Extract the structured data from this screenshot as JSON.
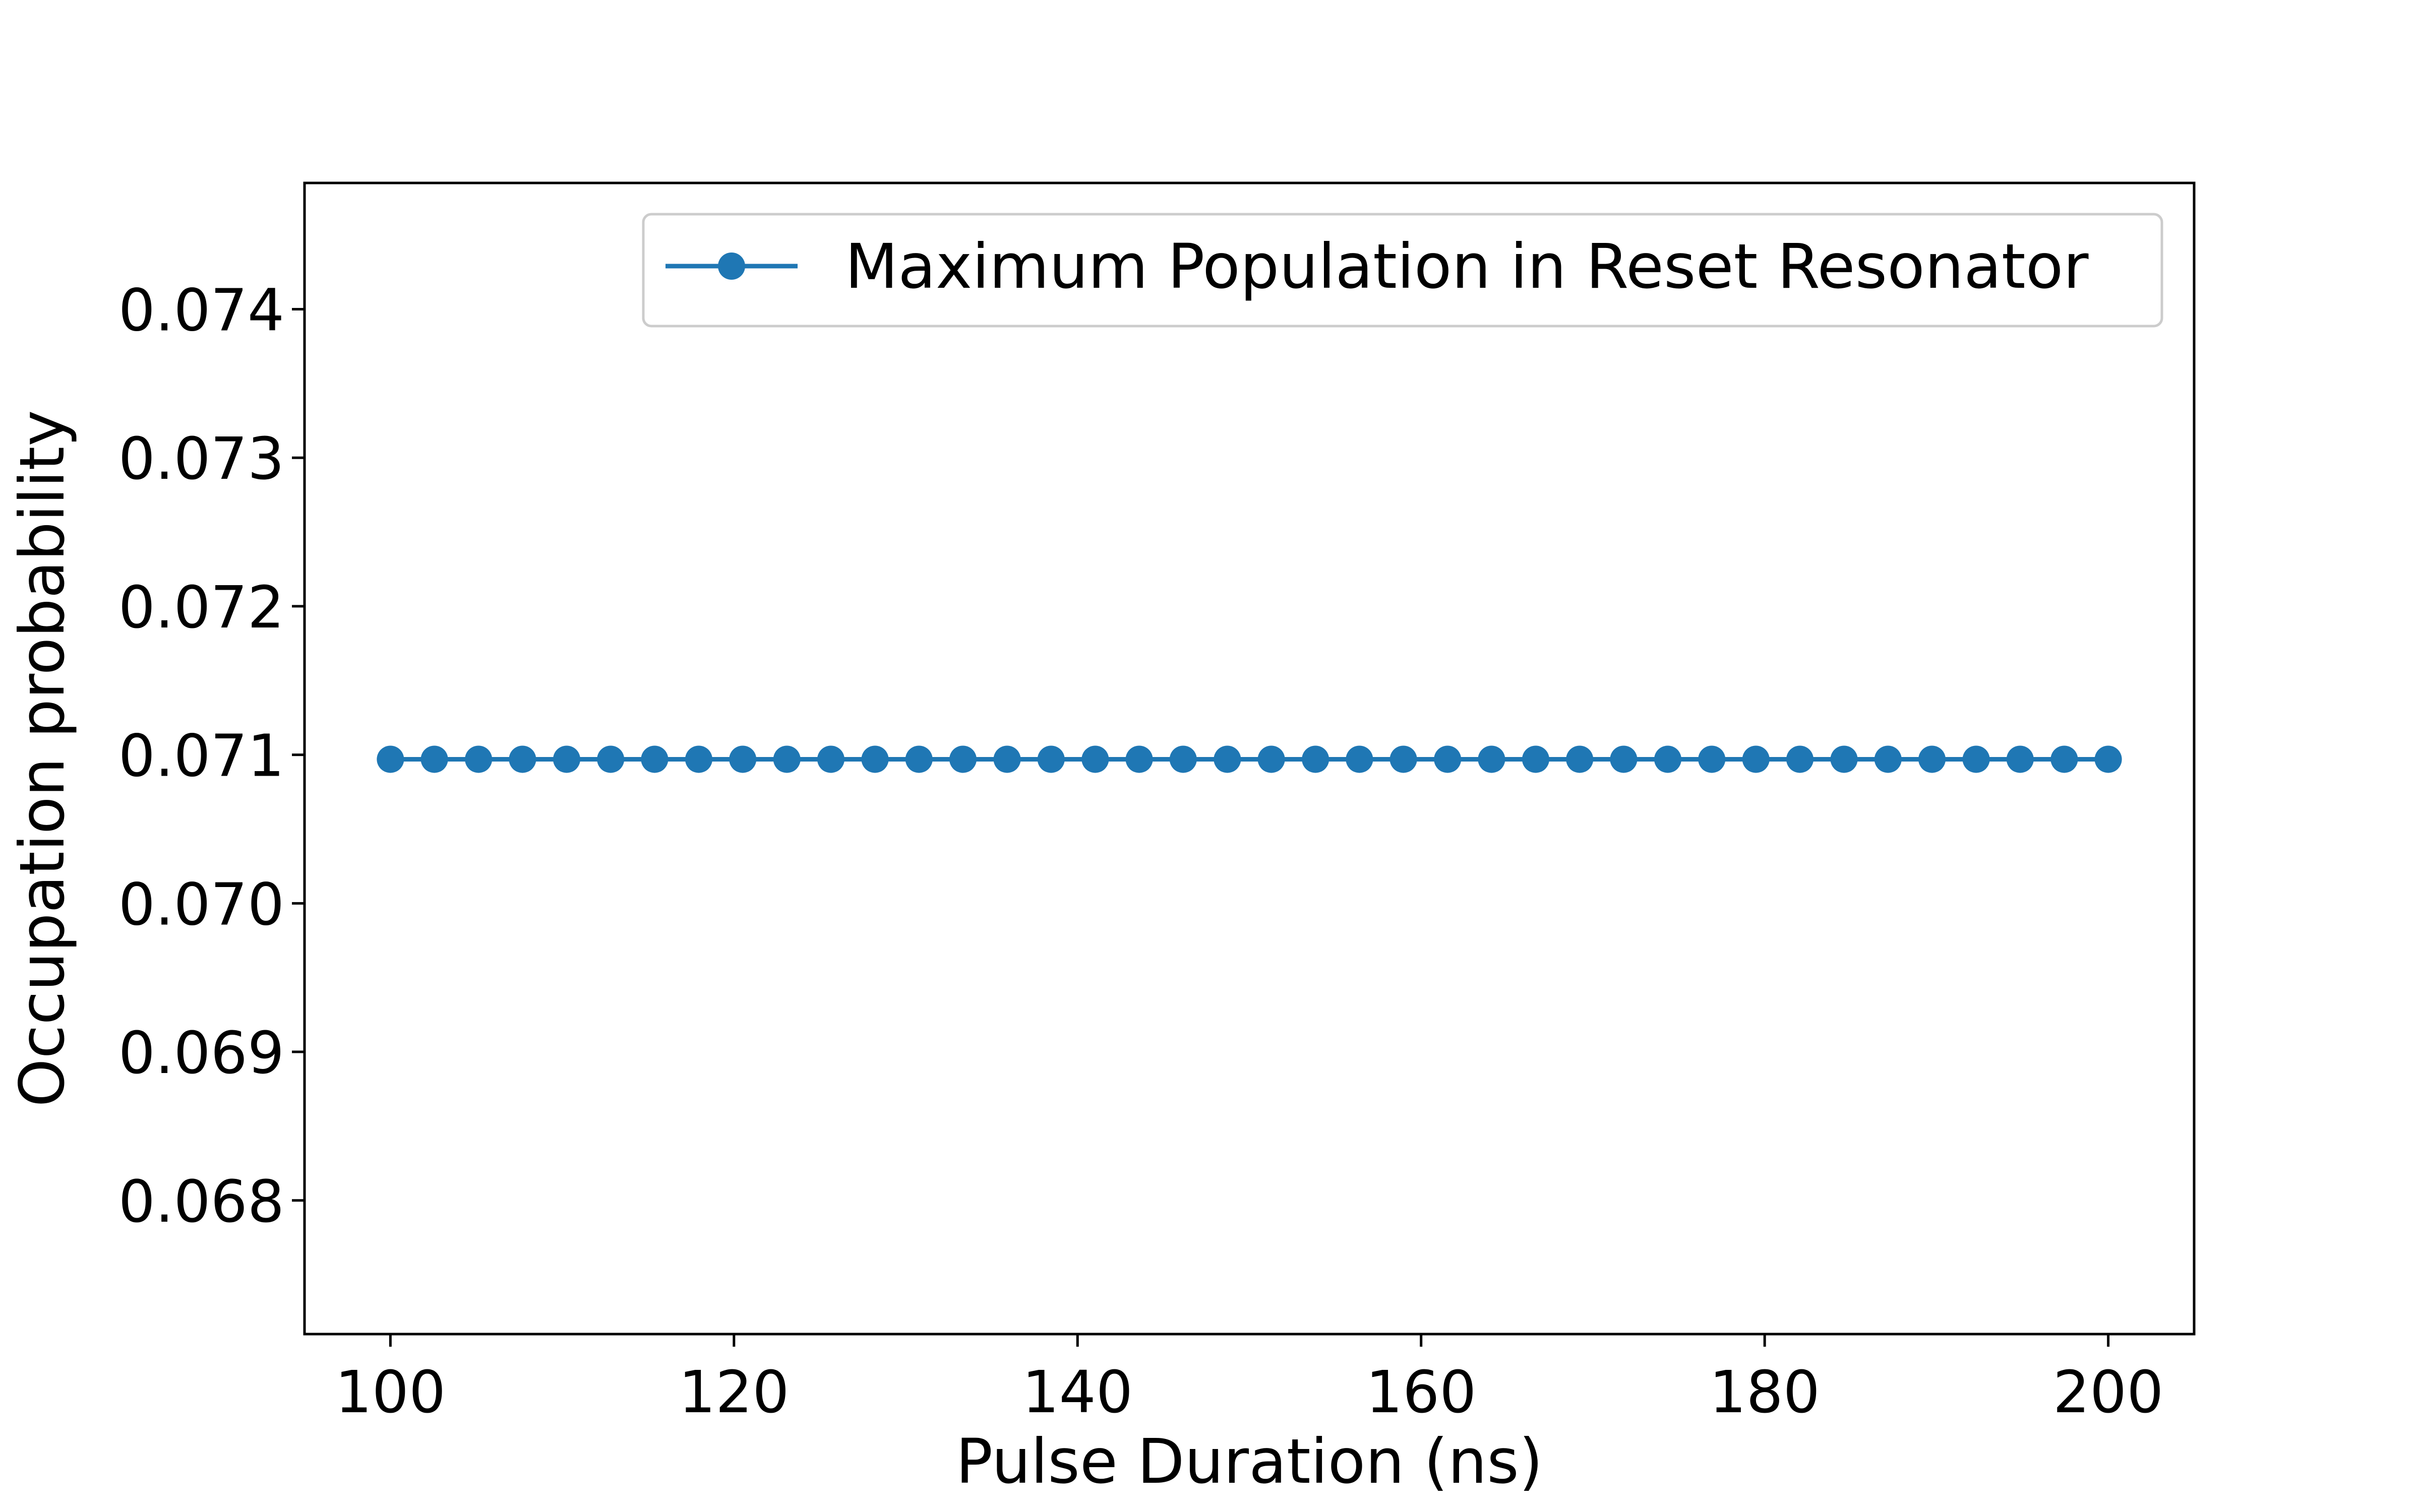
{
  "chart_data": {
    "type": "line",
    "title": "",
    "xlabel": "Pulse Duration (ns)",
    "ylabel": "Occupation probability",
    "xlim": [
      95,
      205
    ],
    "ylim": [
      0.0671,
      0.07485
    ],
    "xticks": [
      100,
      120,
      140,
      160,
      180,
      200
    ],
    "xtick_labels": [
      "100",
      "120",
      "140",
      "160",
      "180",
      "200"
    ],
    "yticks": [
      0.068,
      0.069,
      0.07,
      0.071,
      0.072,
      0.073,
      0.074
    ],
    "ytick_labels": [
      "0.068",
      "0.069",
      "0.070",
      "0.071",
      "0.072",
      "0.073",
      "0.074"
    ],
    "grid": false,
    "legend_position": "top-right",
    "series": [
      {
        "name": "Maximum Population in Reset Resonator",
        "color": "#1f77b4",
        "marker": "circle",
        "x": [
          100,
          102.56,
          105.13,
          107.69,
          110.26,
          112.82,
          115.38,
          117.95,
          120.51,
          123.08,
          125.64,
          128.21,
          130.77,
          133.33,
          135.9,
          138.46,
          141.03,
          143.59,
          146.15,
          148.72,
          151.28,
          153.85,
          156.41,
          158.97,
          161.54,
          164.1,
          166.67,
          169.23,
          171.79,
          174.36,
          176.92,
          179.49,
          182.05,
          184.62,
          187.18,
          189.74,
          192.31,
          194.87,
          197.44,
          200
        ],
        "values": [
          0.07097,
          0.07097,
          0.07097,
          0.07097,
          0.07097,
          0.07097,
          0.07097,
          0.07097,
          0.07097,
          0.07097,
          0.07097,
          0.07097,
          0.07097,
          0.07097,
          0.07097,
          0.07097,
          0.07097,
          0.07097,
          0.07097,
          0.07097,
          0.07097,
          0.07097,
          0.07097,
          0.07097,
          0.07097,
          0.07097,
          0.07097,
          0.07097,
          0.07097,
          0.07097,
          0.07097,
          0.07097,
          0.07097,
          0.07097,
          0.07097,
          0.07097,
          0.07097,
          0.07097,
          0.07097,
          0.07097
        ]
      }
    ]
  }
}
